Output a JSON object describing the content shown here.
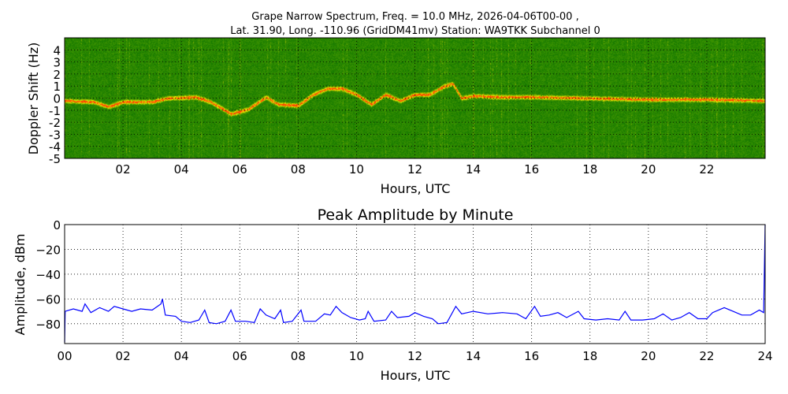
{
  "chart_data": [
    {
      "type": "heatmap",
      "title_line1": "Grape Narrow Spectrum, Freq. = 10.0 MHz, 2026-04-06T00-00 ,",
      "title_line2": "Lat.  31.90, Long. -110.96 (GridDM41mv) Station: WA9TKK Subchannel 0",
      "xlabel": "Hours, UTC",
      "ylabel": "Doppler Shift (Hz)",
      "xlim": [
        0,
        24
      ],
      "ylim": [
        -5,
        5
      ],
      "xticks": [
        "02",
        "04",
        "06",
        "08",
        "10",
        "12",
        "14",
        "16",
        "18",
        "20",
        "22"
      ],
      "yticks": [
        "4",
        "3",
        "2",
        "1",
        "0",
        "-1",
        "-2",
        "-3",
        "-4",
        "-5"
      ],
      "grid": true,
      "colors": {
        "background": "#1f8a00",
        "signal": "#e8e800",
        "peak": "#ff3300"
      },
      "doppler_trace": {
        "x": [
          0,
          1,
          1.5,
          2,
          3,
          3.5,
          4.5,
          5,
          5.7,
          6.3,
          6.9,
          7.3,
          8,
          8.5,
          9,
          9.5,
          10,
          10.5,
          11,
          11.5,
          12,
          12.5,
          13,
          13.3,
          13.6,
          14,
          15,
          16,
          18,
          20,
          22,
          23.8
        ],
        "y": [
          -0.2,
          -0.3,
          -0.7,
          -0.3,
          -0.3,
          0,
          0.1,
          -0.3,
          -1.3,
          -0.9,
          0.1,
          -0.5,
          -0.6,
          0.3,
          0.8,
          0.8,
          0.3,
          -0.5,
          0.3,
          -0.2,
          0.3,
          0.3,
          1,
          1.2,
          0,
          0.2,
          0.1,
          0.1,
          0,
          -0.1,
          -0.1,
          -0.2
        ]
      }
    },
    {
      "type": "line",
      "title": "Peak Amplitude by Minute",
      "xlabel": "Hours, UTC",
      "ylabel": "Amplitude, dBm",
      "xlim": [
        0,
        24
      ],
      "ylim": [
        -96,
        0
      ],
      "xticks": [
        "00",
        "02",
        "04",
        "06",
        "08",
        "10",
        "12",
        "14",
        "16",
        "18",
        "20",
        "22",
        "24"
      ],
      "yticks": [
        "0",
        "−20",
        "−40",
        "−60",
        "−80"
      ],
      "grid": true,
      "color": "#0000ff",
      "x": [
        0,
        0.02,
        0.3,
        0.6,
        0.7,
        0.9,
        1.2,
        1.5,
        1.7,
        2,
        2.3,
        2.6,
        3,
        3.3,
        3.35,
        3.45,
        3.8,
        4,
        4.3,
        4.6,
        4.8,
        4.95,
        5.2,
        5.5,
        5.7,
        5.85,
        6.2,
        6.5,
        6.7,
        6.9,
        7.2,
        7.4,
        7.5,
        7.8,
        8.1,
        8.2,
        8.6,
        8.9,
        9.1,
        9.3,
        9.5,
        9.8,
        10.1,
        10.3,
        10.4,
        10.6,
        11,
        11.2,
        11.4,
        11.8,
        12,
        12.3,
        12.6,
        12.8,
        13.1,
        13.4,
        13.6,
        14,
        14.5,
        15,
        15.5,
        15.8,
        16.1,
        16.3,
        16.6,
        16.9,
        17.2,
        17.6,
        17.8,
        18.2,
        18.6,
        19,
        19.2,
        19.4,
        19.8,
        20.2,
        20.5,
        20.8,
        21.1,
        21.4,
        21.7,
        22,
        22.2,
        22.6,
        22.9,
        23.2,
        23.5,
        23.8,
        23.95,
        24
      ],
      "y": [
        -95,
        -70,
        -68,
        -70,
        -64,
        -71,
        -67,
        -70,
        -66,
        -68,
        -70,
        -68,
        -69,
        -64,
        -60,
        -73,
        -74,
        -78,
        -79,
        -77,
        -69,
        -79,
        -80,
        -78,
        -69,
        -78,
        -78,
        -79,
        -68,
        -73,
        -76,
        -69,
        -79,
        -78,
        -69,
        -78,
        -78,
        -72,
        -73,
        -66,
        -71,
        -75,
        -77,
        -76,
        -70,
        -78,
        -77,
        -70,
        -75,
        -74,
        -71,
        -74,
        -76,
        -80,
        -79,
        -66,
        -72,
        -70,
        -72,
        -71,
        -72,
        -76,
        -66,
        -74,
        -73,
        -71,
        -75,
        -70,
        -76,
        -77,
        -76,
        -77,
        -70,
        -77,
        -77,
        -76,
        -72,
        -77,
        -75,
        -71,
        -76,
        -76,
        -71,
        -67,
        -70,
        -73,
        -73,
        -69,
        -71,
        0
      ]
    }
  ]
}
